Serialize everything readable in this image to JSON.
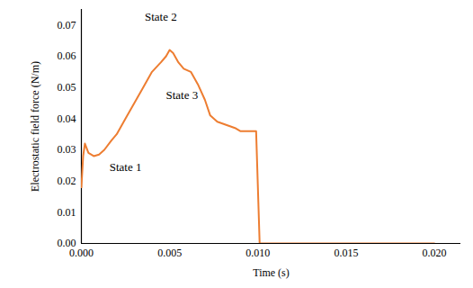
{
  "chart_data": {
    "type": "line",
    "x_label": "Time (s)",
    "y_label": "Electrostatic field force (N/m)",
    "x": [
      0,
      0.0001,
      0.0002,
      0.0004,
      0.0007,
      0.001,
      0.0013,
      0.0017,
      0.002,
      0.0025,
      0.003,
      0.0035,
      0.004,
      0.0045,
      0.0048,
      0.005,
      0.0052,
      0.0055,
      0.0058,
      0.0062,
      0.0066,
      0.007,
      0.0073,
      0.0077,
      0.0082,
      0.0087,
      0.009,
      0.0095,
      0.0099,
      0.0101,
      0.0105,
      0.012,
      0.015,
      0.018,
      0.02
    ],
    "series": [
      {
        "name": "Electrostatic field force",
        "color": "#ed7d31",
        "values": [
          0.018,
          0.028,
          0.032,
          0.029,
          0.028,
          0.0285,
          0.03,
          0.033,
          0.035,
          0.04,
          0.045,
          0.05,
          0.055,
          0.058,
          0.06,
          0.062,
          0.061,
          0.058,
          0.056,
          0.055,
          0.051,
          0.046,
          0.041,
          0.039,
          0.038,
          0.037,
          0.036,
          0.036,
          0.036,
          0,
          0,
          0,
          0,
          0,
          0
        ]
      }
    ],
    "xlim": [
      0,
      0.0215
    ],
    "ylim": [
      0,
      0.075
    ],
    "xticks": [
      0,
      0.005,
      0.01,
      0.015,
      0.02
    ],
    "yticks": [
      0,
      0.01,
      0.02,
      0.03,
      0.04,
      0.05,
      0.06,
      0.07
    ],
    "grid": false,
    "annotations": [
      {
        "text": "State 1",
        "x": 0.0025,
        "y": 0.0245
      },
      {
        "text": "State 2",
        "x": 0.0045,
        "y": 0.0725
      },
      {
        "text": "State 3",
        "x": 0.0057,
        "y": 0.0475
      }
    ]
  }
}
